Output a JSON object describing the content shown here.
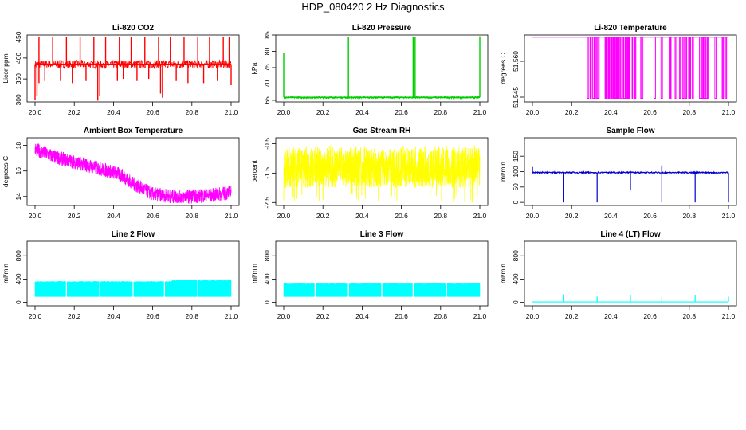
{
  "page": {
    "title": "HDP_080420  2 Hz Diagnostics"
  },
  "colors": {
    "red": "#ff0000",
    "green": "#00cd00",
    "magenta": "#ff00ff",
    "yellow": "#ffff00",
    "blue": "#0000cd",
    "cyan": "#00ffff",
    "axis": "#000000"
  },
  "chart_data": [
    {
      "type": "line",
      "title": "Li-820 CO2",
      "ylabel": "Licor ppm",
      "color_key": "red",
      "xlim": [
        20.0,
        21.0
      ],
      "ylim": [
        295,
        455
      ],
      "x_ticks": [
        "20.0",
        "20.2",
        "20.4",
        "20.6",
        "20.8",
        "21.0"
      ],
      "y_ticks": [
        "300",
        "350",
        "400",
        "450"
      ],
      "series": [
        {
          "baseline": 385,
          "noise_range": [
            375,
            395
          ],
          "spikes_up": [
            [
              20.02,
              450
            ],
            [
              20.09,
              450
            ],
            [
              20.16,
              450
            ],
            [
              20.23,
              450
            ],
            [
              20.3,
              450
            ],
            [
              20.36,
              450
            ],
            [
              20.43,
              450
            ],
            [
              20.49,
              450
            ],
            [
              20.56,
              450
            ],
            [
              20.63,
              450
            ],
            [
              20.69,
              450
            ],
            [
              20.76,
              450
            ],
            [
              20.83,
              450
            ],
            [
              20.89,
              450
            ],
            [
              20.96,
              450
            ],
            [
              20.99,
              450
            ]
          ],
          "spikes_down": [
            [
              20.0,
              300
            ],
            [
              20.01,
              310
            ],
            [
              20.02,
              340
            ],
            [
              20.05,
              345
            ],
            [
              20.13,
              345
            ],
            [
              20.19,
              340
            ],
            [
              20.26,
              345
            ],
            [
              20.32,
              298
            ],
            [
              20.33,
              310
            ],
            [
              20.42,
              345
            ],
            [
              20.45,
              350
            ],
            [
              20.52,
              345
            ],
            [
              20.58,
              350
            ],
            [
              20.64,
              315
            ],
            [
              20.65,
              305
            ],
            [
              20.72,
              345
            ],
            [
              20.78,
              340
            ],
            [
              20.86,
              340
            ],
            [
              20.93,
              345
            ],
            [
              21.0,
              335
            ]
          ]
        }
      ]
    },
    {
      "type": "line",
      "title": "Li-820 Pressure",
      "ylabel": "kPa",
      "color_key": "green",
      "xlim": [
        20.0,
        21.0
      ],
      "ylim": [
        64.5,
        85
      ],
      "x_ticks": [
        "20.0",
        "20.2",
        "20.4",
        "20.6",
        "20.8",
        "21.0"
      ],
      "y_ticks": [
        "65",
        "70",
        "75",
        "80",
        "85"
      ],
      "series": [
        {
          "baseline": 65.9,
          "noise_range": [
            65.5,
            66.2
          ],
          "spikes_up": [
            [
              20.0,
              79.5
            ],
            [
              20.33,
              84.5
            ],
            [
              20.66,
              84.3
            ],
            [
              20.67,
              84.5
            ],
            [
              21.0,
              84.6
            ]
          ]
        }
      ]
    },
    {
      "type": "line",
      "title": "Li-820 Temperature",
      "ylabel": "degrees C",
      "color_key": "magenta",
      "xlim": [
        20.0,
        21.0
      ],
      "ylim": [
        51.543,
        51.571
      ],
      "x_ticks": [
        "20.0",
        "20.2",
        "20.4",
        "20.6",
        "20.8",
        "21.0"
      ],
      "y_ticks": [
        "51.545",
        "51.560"
      ],
      "series": [
        {
          "baseline": 51.5701,
          "drop_to": 51.5445,
          "drops_from": 20.27,
          "drops_count": 60
        }
      ]
    },
    {
      "type": "line",
      "title": "Ambient Box Temperature",
      "ylabel": "degrees C",
      "color_key": "magenta",
      "xlim": [
        20.0,
        21.0
      ],
      "ylim": [
        13.3,
        18.6
      ],
      "x_ticks": [
        "20.0",
        "20.2",
        "20.4",
        "20.6",
        "20.8",
        "21.0"
      ],
      "y_ticks": [
        "14",
        "16",
        "18"
      ],
      "series": [
        {
          "x": [
            20.0,
            0.05,
            0.1,
            0.2,
            0.3,
            0.4,
            0.45,
            0.5,
            0.55,
            0.6,
            0.65,
            0.7,
            0.8,
            0.9,
            0.95,
            1.0
          ],
          "y": [
            17.7,
            17.4,
            17.1,
            16.7,
            16.3,
            15.9,
            15.6,
            15.0,
            14.6,
            14.2,
            14.1,
            14.0,
            14.0,
            14.1,
            14.2,
            14.3
          ],
          "band_halfwidth": 0.55
        }
      ]
    },
    {
      "type": "line",
      "title": "Gas Stream RH",
      "ylabel": "percent",
      "color_key": "yellow",
      "xlim": [
        20.0,
        21.0
      ],
      "ylim": [
        -2.6,
        -0.3
      ],
      "x_ticks": [
        "20.0",
        "20.2",
        "20.4",
        "20.6",
        "20.8",
        "21.0"
      ],
      "y_ticks": [
        "-2.5",
        "-1.5",
        "-0.5"
      ],
      "series": [
        {
          "center": -1.35,
          "band": [
            -2.0,
            -0.65
          ],
          "extreme": [
            -2.5,
            -0.55
          ]
        }
      ]
    },
    {
      "type": "line",
      "title": "Sample Flow",
      "ylabel": "ml/min",
      "color_key": "blue",
      "xlim": [
        20.0,
        21.0
      ],
      "ylim": [
        -10,
        210
      ],
      "x_ticks": [
        "20.0",
        "20.2",
        "20.4",
        "20.6",
        "20.8",
        "21.0"
      ],
      "y_ticks": [
        "0",
        "50",
        "100",
        "150"
      ],
      "series": [
        {
          "baseline": 97,
          "drops": [
            [
              20.16,
              0
            ],
            [
              20.33,
              0
            ],
            [
              20.5,
              40
            ],
            [
              20.66,
              0
            ],
            [
              20.83,
              0
            ],
            [
              21.0,
              0
            ]
          ],
          "spikes_up": [
            [
              20.0,
              115
            ],
            [
              20.66,
              120
            ],
            [
              20.5,
              102
            ]
          ]
        }
      ]
    },
    {
      "type": "area",
      "title": "Line 2 Flow",
      "ylabel": "ml/min",
      "color_key": "cyan",
      "xlim": [
        20.0,
        21.0
      ],
      "ylim": [
        -60,
        1050
      ],
      "x_ticks": [
        "20.0",
        "20.2",
        "20.4",
        "20.6",
        "20.8",
        "21.0"
      ],
      "y_ticks": [
        "0",
        "400",
        "800"
      ],
      "series": [
        {
          "band": [
            100,
            355
          ],
          "gaps": [
            20.16,
            20.33,
            20.5,
            20.66,
            20.83
          ],
          "top_after": [
            20.7,
            375
          ]
        }
      ]
    },
    {
      "type": "area",
      "title": "Line 3 Flow",
      "ylabel": "ml/min",
      "color_key": "cyan",
      "xlim": [
        20.0,
        21.0
      ],
      "ylim": [
        -60,
        1050
      ],
      "x_ticks": [
        "20.0",
        "20.2",
        "20.4",
        "20.6",
        "20.8",
        "21.0"
      ],
      "y_ticks": [
        "0",
        "400",
        "800"
      ],
      "series": [
        {
          "band": [
            100,
            320
          ],
          "gaps": [
            20.16,
            20.33,
            20.5,
            20.66,
            20.83
          ],
          "top_after": [
            21.0,
            320
          ]
        }
      ]
    },
    {
      "type": "line",
      "title": "Line 4 (LT) Flow",
      "ylabel": "ml/min",
      "color_key": "cyan",
      "xlim": [
        20.0,
        21.0
      ],
      "ylim": [
        -60,
        1050
      ],
      "x_ticks": [
        "20.0",
        "20.2",
        "20.4",
        "20.6",
        "20.8",
        "21.0"
      ],
      "y_ticks": [
        "0",
        "400",
        "800"
      ],
      "series": [
        {
          "baseline": 8,
          "spikes_up": [
            [
              20.16,
              140
            ],
            [
              20.33,
              100
            ],
            [
              20.5,
              130
            ],
            [
              20.66,
              90
            ],
            [
              20.83,
              120
            ],
            [
              21.0,
              100
            ]
          ]
        }
      ]
    }
  ]
}
